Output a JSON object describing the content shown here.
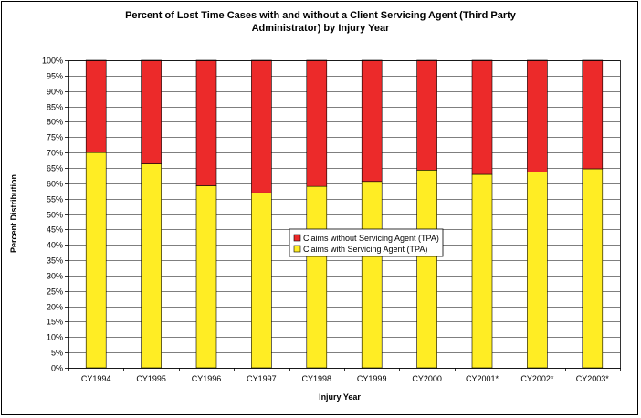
{
  "chart_data": {
    "type": "bar",
    "stacked": true,
    "title_lines": [
      "Percent of Lost Time Cases with and without a Client Servicing Agent (Third Party",
      "Administrator) by Injury Year"
    ],
    "xlabel": "Injury Year",
    "ylabel": "Percent Distribution",
    "ylim": [
      0,
      100
    ],
    "ytick_step": 5,
    "y_tick_suffix": "%",
    "grid": true,
    "legend_position": "center",
    "categories": [
      "CY1994",
      "CY1995",
      "CY1996",
      "CY1997",
      "CY1998",
      "CY1999",
      "CY2000",
      "CY2001*",
      "CY2002*",
      "CY2003*"
    ],
    "series": [
      {
        "name": "Claims with Servicing Agent (TPA)",
        "color": "#ffed24",
        "values": [
          70,
          66.3,
          59.2,
          56.9,
          59,
          60.6,
          64.3,
          62.9,
          63.7,
          64.7
        ]
      },
      {
        "name": "Claims without Servicing Agent (TPA)",
        "color": "#ec2a2a",
        "values": [
          30,
          33.7,
          40.8,
          43.1,
          41,
          39.4,
          35.7,
          37.1,
          36.3,
          35.3
        ]
      }
    ]
  }
}
